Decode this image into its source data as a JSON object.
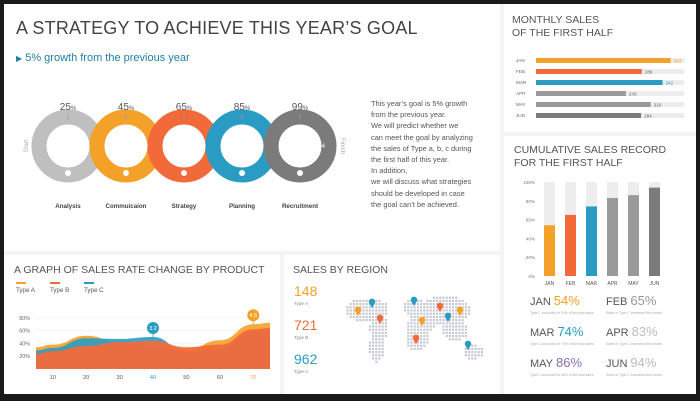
{
  "strategy": {
    "title": "A STRATEGY TO ACHIEVE THIS YEAR’S GOAL",
    "subtitle": "5% growth from the previous year",
    "start_label": "Start",
    "finish_label": "Finish",
    "percent_sign": "%",
    "steps": [
      {
        "pct": "25",
        "option": "",
        "label": "Analysis",
        "color": "#bfbfbf"
      },
      {
        "pct": "45",
        "option": "Option 01",
        "label": "Commuicaion",
        "color": "#f4a12a"
      },
      {
        "pct": "65",
        "option": "Option 02",
        "label": "Strategy",
        "color": "#f26a3a"
      },
      {
        "pct": "85",
        "option": "Option 03",
        "label": "Planning",
        "color": "#2a9cc4"
      },
      {
        "pct": "99",
        "option": "Option 04",
        "label": "Recruitment",
        "color": "#7b7b7b"
      }
    ],
    "description": [
      "This year’s goal is 5% growth",
      "from the previous year.",
      "We will predict whether we",
      "can meet the goal by analyzing",
      "the sales of Type a, b, c during",
      "the first half of this year.",
      "In addition,",
      "we will discuss what strategies",
      "should be developed in case",
      "the goal can’t be achieved."
    ]
  },
  "monthly": {
    "title_line1": "MONTHLY SALES",
    "title_line2": "OF THE FIRST HALF",
    "max": 400,
    "rows": [
      {
        "month": "JAN",
        "value": 364,
        "color": "#f4a12a"
      },
      {
        "month": "FEB",
        "value": 286,
        "color": "#f26a3a"
      },
      {
        "month": "MAR",
        "value": 342,
        "color": "#2a9cc4"
      },
      {
        "month": "APR",
        "value": 243,
        "color": "#9a9a9a"
      },
      {
        "month": "MAY",
        "value": 310,
        "color": "#9a9a9a"
      },
      {
        "month": "JUN",
        "value": 284,
        "color": "#7b7b7b"
      }
    ]
  },
  "cumulative": {
    "title_line1": "CUMULATIVE SALES RECORD",
    "title_line2": "FOR THE FIRST HALF"
  },
  "chart_data": [
    {
      "type": "bar",
      "title": "CUMULATIVE SALES RECORD FOR THE FIRST HALF",
      "categories": [
        "JAN",
        "FEB",
        "MAR",
        "APR",
        "MAY",
        "JUN"
      ],
      "values": [
        54,
        65,
        74,
        83,
        86,
        94
      ],
      "yticks": [
        "100%",
        "80%",
        "60%",
        "40%",
        "20%",
        "0%"
      ],
      "ylim": [
        0,
        100
      ],
      "colors": [
        "#f4a12a",
        "#f26a3a",
        "#2a9cc4",
        "#9a9a9a",
        "#9a9a9a",
        "#7b7b7b"
      ]
    },
    {
      "type": "area",
      "title": "A GRAPH OF SALES RATE CHANGE BY PRODUCT",
      "x": [
        10,
        20,
        30,
        40,
        50,
        60,
        70
      ],
      "series": [
        {
          "name": "Type A",
          "color": "#f4a12a",
          "values": [
            38,
            52,
            42,
            36,
            30,
            45,
            70
          ]
        },
        {
          "name": "Type B",
          "color": "#f26a3a",
          "values": [
            28,
            36,
            42,
            44,
            34,
            38,
            62
          ]
        },
        {
          "name": "Type C",
          "color": "#2a9cc4",
          "values": [
            33,
            48,
            47,
            50,
            26,
            32,
            58
          ]
        }
      ],
      "ylim": [
        0,
        100
      ],
      "yticks": [
        "80%",
        "60%",
        "40%",
        "20%"
      ],
      "callouts": [
        {
          "label": "3.2",
          "x": 40,
          "y": 50,
          "color": "#2a9cc4"
        },
        {
          "label": "4.5",
          "x": 70,
          "y": 70,
          "color": "#f4a12a"
        }
      ],
      "highlight_ticks": [
        {
          "x": 40,
          "color": "#2a9cc4"
        },
        {
          "x": 70,
          "color": "#f4a12a"
        }
      ]
    }
  ],
  "cum_labels": [
    {
      "month": "JAN",
      "pct": "54",
      "color": "#f4a12a",
      "note": "Type C accounts for 54% of the total sales"
    },
    {
      "month": "FEB",
      "pct": "65",
      "color": "#9a9a9a",
      "note": "Sales of Type C increased this month"
    },
    {
      "month": "MAR",
      "pct": "74",
      "color": "#2a9cc4",
      "note": "Type C accounts for 74% of the total sales"
    },
    {
      "month": "APR",
      "pct": "83",
      "color": "#bbbbbb",
      "note": "Sales of Type C increased this month"
    },
    {
      "month": "MAY",
      "pct": "86",
      "color": "#8a6fb0",
      "note": "Type C accounts for 86% of the total sales"
    },
    {
      "month": "JUN",
      "pct": "94",
      "color": "#bbbbbb",
      "note": "Sales of Type C increased this month"
    }
  ],
  "rate": {
    "title": "A GRAPH OF SALES RATE CHANGE BY PRODUCT",
    "legend": [
      {
        "name": "Type A",
        "color": "#f4a12a"
      },
      {
        "name": "Type B",
        "color": "#f26a3a"
      },
      {
        "name": "Type C",
        "color": "#2a9cc4"
      }
    ]
  },
  "region": {
    "title": "SALES BY REGION",
    "items": [
      {
        "value": "148",
        "type": "Type A",
        "color": "#f4a12a"
      },
      {
        "value": "721",
        "type": "Type B",
        "color": "#f26a3a"
      },
      {
        "value": "962",
        "type": "Type C",
        "color": "#2a9cc4"
      }
    ],
    "pins": [
      {
        "color": "#2a9cc4"
      },
      {
        "color": "#f4a12a"
      },
      {
        "color": "#f26a3a"
      },
      {
        "color": "#2a9cc4"
      },
      {
        "color": "#f4a12a"
      },
      {
        "color": "#f26a3a"
      },
      {
        "color": "#2a9cc4"
      },
      {
        "color": "#f4a12a"
      },
      {
        "color": "#f26a3a"
      },
      {
        "color": "#2a9cc4"
      }
    ]
  }
}
